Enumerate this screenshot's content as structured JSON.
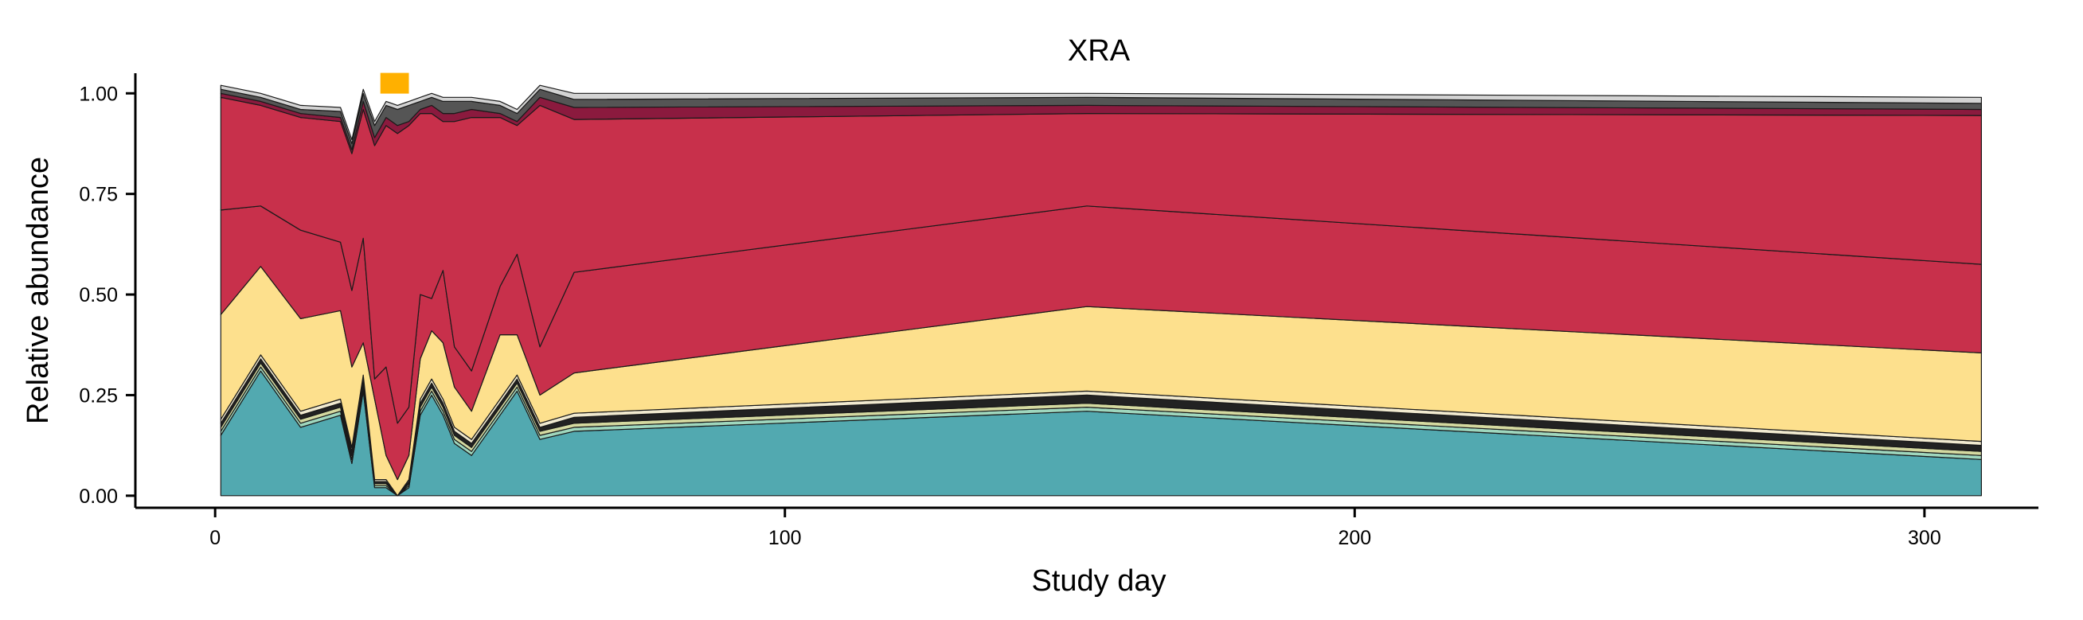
{
  "chart_data": {
    "type": "area",
    "stacked": true,
    "title": "XRA",
    "xlabel": "Study day",
    "ylabel": "Relative abundance",
    "xlim": [
      -14,
      320
    ],
    "ylim": [
      -0.03,
      1.05
    ],
    "x_ticks": [
      0,
      100,
      200,
      300
    ],
    "y_ticks": [
      0.0,
      0.25,
      0.5,
      0.75,
      1.0
    ],
    "x_tick_labels": [
      "0",
      "100",
      "200",
      "300"
    ],
    "y_tick_labels": [
      "0.00",
      "0.25",
      "0.50",
      "0.75",
      "1.00"
    ],
    "grid": false,
    "legend": "none",
    "colors": {
      "band_edge": "#1a1a1a",
      "marker": "#ffb000"
    },
    "annotations": [
      {
        "type": "marker",
        "x_start": 29,
        "x_end": 34,
        "y": 1.025
      }
    ],
    "x": [
      1,
      8,
      15,
      22,
      24,
      26,
      28,
      30,
      32,
      34,
      36,
      38,
      40,
      42,
      45,
      50,
      53,
      57,
      63,
      153,
      310
    ],
    "series": [
      {
        "color": "#52a9b0",
        "values": [
          0.15,
          0.31,
          0.17,
          0.2,
          0.08,
          0.26,
          0.02,
          0.02,
          0.0,
          0.02,
          0.2,
          0.25,
          0.2,
          0.13,
          0.1,
          0.2,
          0.26,
          0.14,
          0.16,
          0.21,
          0.09
        ]
      },
      {
        "color": "#9fd7be",
        "values": [
          0.01,
          0.01,
          0.01,
          0.01,
          0.01,
          0.01,
          0.005,
          0.005,
          0.0,
          0.005,
          0.01,
          0.01,
          0.01,
          0.01,
          0.01,
          0.01,
          0.01,
          0.01,
          0.01,
          0.01,
          0.01
        ]
      },
      {
        "color": "#d4d9a0",
        "values": [
          0.01,
          0.01,
          0.01,
          0.01,
          0.01,
          0.01,
          0.005,
          0.005,
          0.0,
          0.005,
          0.01,
          0.01,
          0.01,
          0.01,
          0.01,
          0.01,
          0.01,
          0.01,
          0.01,
          0.01,
          0.01
        ]
      },
      {
        "color": "#222222",
        "values": [
          0.01,
          0.01,
          0.01,
          0.01,
          0.01,
          0.01,
          0.005,
          0.005,
          0.0,
          0.005,
          0.01,
          0.01,
          0.01,
          0.01,
          0.01,
          0.01,
          0.01,
          0.01,
          0.015,
          0.02,
          0.015
        ]
      },
      {
        "color": "#f1ead0",
        "values": [
          0.01,
          0.01,
          0.01,
          0.01,
          0.01,
          0.01,
          0.005,
          0.005,
          0.0,
          0.005,
          0.01,
          0.01,
          0.01,
          0.01,
          0.01,
          0.01,
          0.01,
          0.01,
          0.01,
          0.01,
          0.01
        ]
      },
      {
        "color": "#fde08d",
        "values": [
          0.26,
          0.22,
          0.23,
          0.22,
          0.2,
          0.08,
          0.2,
          0.06,
          0.04,
          0.06,
          0.1,
          0.12,
          0.14,
          0.1,
          0.07,
          0.16,
          0.1,
          0.07,
          0.1,
          0.21,
          0.22
        ]
      },
      {
        "color": "#c8304b",
        "values": [
          0.26,
          0.15,
          0.22,
          0.17,
          0.19,
          0.26,
          0.05,
          0.22,
          0.14,
          0.12,
          0.16,
          0.08,
          0.18,
          0.1,
          0.1,
          0.12,
          0.2,
          0.12,
          0.25,
          0.25,
          0.22
        ]
      },
      {
        "color": "#c8304b",
        "values": [
          0.28,
          0.25,
          0.28,
          0.3,
          0.34,
          0.32,
          0.58,
          0.6,
          0.72,
          0.7,
          0.45,
          0.46,
          0.37,
          0.56,
          0.63,
          0.42,
          0.32,
          0.6,
          0.38,
          0.23,
          0.37
        ]
      },
      {
        "color": "#8b1a3e",
        "values": [
          0.01,
          0.01,
          0.01,
          0.01,
          0.01,
          0.02,
          0.02,
          0.02,
          0.02,
          0.01,
          0.01,
          0.02,
          0.02,
          0.02,
          0.02,
          0.01,
          0.01,
          0.02,
          0.03,
          0.02,
          0.015
        ]
      },
      {
        "color": "#555555",
        "values": [
          0.01,
          0.01,
          0.01,
          0.015,
          0.015,
          0.02,
          0.03,
          0.03,
          0.04,
          0.04,
          0.02,
          0.02,
          0.03,
          0.03,
          0.02,
          0.02,
          0.02,
          0.02,
          0.02,
          0.02,
          0.015
        ]
      },
      {
        "color": "#d3d3d3",
        "values": [
          0.01,
          0.01,
          0.01,
          0.01,
          0.01,
          0.01,
          0.01,
          0.01,
          0.01,
          0.01,
          0.01,
          0.01,
          0.01,
          0.01,
          0.01,
          0.01,
          0.01,
          0.01,
          0.015,
          0.01,
          0.015
        ]
      }
    ]
  }
}
